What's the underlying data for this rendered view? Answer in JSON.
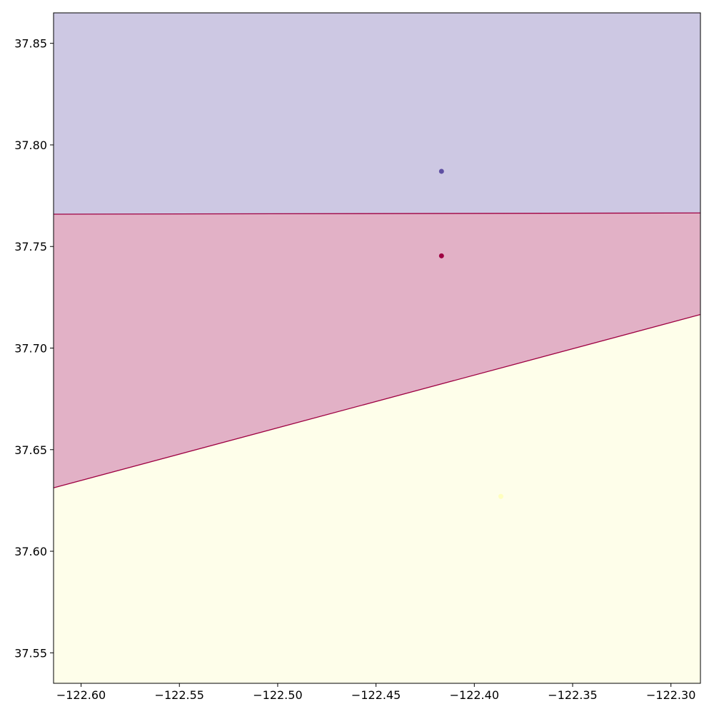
{
  "chart_data": {
    "type": "area",
    "title": "",
    "xlabel": "",
    "ylabel": "",
    "xlim": [
      -122.614,
      -122.285
    ],
    "ylim": [
      37.535,
      37.865
    ],
    "grid": false,
    "x_ticks": [
      -122.6,
      -122.55,
      -122.5,
      -122.45,
      -122.4,
      -122.35,
      -122.3
    ],
    "x_tick_labels": [
      "−122.60",
      "−122.55",
      "−122.50",
      "−122.45",
      "−122.40",
      "−122.35",
      "−122.30"
    ],
    "y_ticks": [
      37.55,
      37.6,
      37.65,
      37.7,
      37.75,
      37.8,
      37.85
    ],
    "y_tick_labels": [
      "37.55",
      "37.60",
      "37.65",
      "37.70",
      "37.75",
      "37.80",
      "37.85"
    ],
    "regions": [
      {
        "color": "#cdc8e3",
        "polygon": [
          [
            -122.614,
            37.865
          ],
          [
            -122.285,
            37.865
          ],
          [
            -122.285,
            37.7665
          ],
          [
            -122.614,
            37.7659
          ]
        ]
      },
      {
        "color": "#e2b1c6",
        "polygon": [
          [
            -122.614,
            37.7659
          ],
          [
            -122.285,
            37.7665
          ],
          [
            -122.285,
            37.7165
          ],
          [
            -122.614,
            37.6312
          ]
        ]
      },
      {
        "color": "#fefeea",
        "polygon": [
          [
            -122.614,
            37.6312
          ],
          [
            -122.285,
            37.7165
          ],
          [
            -122.285,
            37.535
          ],
          [
            -122.614,
            37.535
          ]
        ]
      }
    ],
    "boundaries": [
      {
        "color": "#9e0142",
        "points": [
          [
            -122.614,
            37.7659
          ],
          [
            -122.285,
            37.7665
          ]
        ]
      },
      {
        "color": "#9e0142",
        "points": [
          [
            -122.614,
            37.6312
          ],
          [
            -122.285,
            37.7165
          ]
        ]
      }
    ],
    "points": [
      {
        "x": -122.4167,
        "y": 37.787,
        "color": "#5e4fa2"
      },
      {
        "x": -122.4167,
        "y": 37.7454,
        "color": "#9e0142"
      },
      {
        "x": -122.3865,
        "y": 37.627,
        "color": "#ffffbf"
      }
    ]
  }
}
